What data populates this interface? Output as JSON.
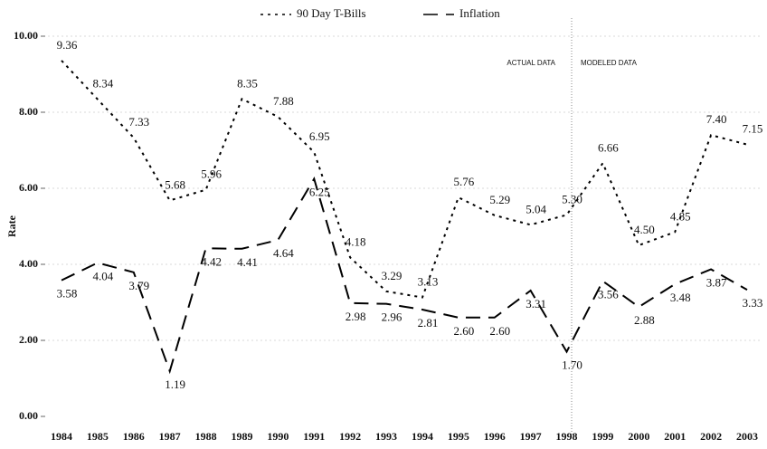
{
  "chart_data": {
    "type": "line",
    "y_label": "Rate",
    "categories": [
      "1984",
      "1985",
      "1986",
      "1987",
      "1988",
      "1989",
      "1990",
      "1991",
      "1992",
      "1993",
      "1994",
      "1995",
      "1996",
      "1997",
      "1998",
      "1999",
      "2000",
      "2001",
      "2002",
      "2003"
    ],
    "series": [
      {
        "name": "90 Day T-Bills",
        "color": "#000000",
        "dash": "3,5",
        "values": [
          9.36,
          8.34,
          7.33,
          5.68,
          5.96,
          8.35,
          7.88,
          6.95,
          4.18,
          3.29,
          3.13,
          5.76,
          5.29,
          5.04,
          5.3,
          6.66,
          4.5,
          4.85,
          7.4,
          7.15
        ],
        "value_labels": [
          "9.36",
          "8.34",
          "7.33",
          "5.68",
          "5.96",
          "8.35",
          "7.88",
          "6.95",
          "4.18",
          "3.29",
          "3.13",
          "5.76",
          "5.29",
          "5.04",
          "5.30",
          "6.66",
          "4.50",
          "4.85",
          "7.40",
          "7.15"
        ]
      },
      {
        "name": "Inflation",
        "color": "#000000",
        "dash": "16,9",
        "values": [
          3.58,
          4.04,
          3.79,
          1.19,
          4.42,
          4.41,
          4.64,
          6.25,
          2.98,
          2.96,
          2.81,
          2.6,
          2.6,
          3.31,
          1.7,
          3.56,
          2.88,
          3.48,
          3.87,
          3.33
        ],
        "value_labels": [
          "3.58",
          "4.04",
          "3.79",
          "1.19",
          "4.42",
          "4.41",
          "4.64",
          "6.25",
          "2.98",
          "2.96",
          "2.81",
          "2.60",
          "2.60",
          "3.31",
          "1.70",
          "3.56",
          "2.88",
          "3.48",
          "3.87",
          "3.33"
        ]
      }
    ],
    "ylim": [
      0,
      10
    ],
    "yticks": [
      {
        "value": 0,
        "label": "0.00"
      },
      {
        "value": 2,
        "label": "2.00"
      },
      {
        "value": 4,
        "label": "4.00"
      },
      {
        "value": 6,
        "label": "6.00"
      },
      {
        "value": 8,
        "label": "8.00"
      },
      {
        "value": 10,
        "label": "10.00"
      }
    ],
    "grid": true,
    "annotations": [
      "ACTUAL DATA",
      "MODELED DATA"
    ]
  }
}
